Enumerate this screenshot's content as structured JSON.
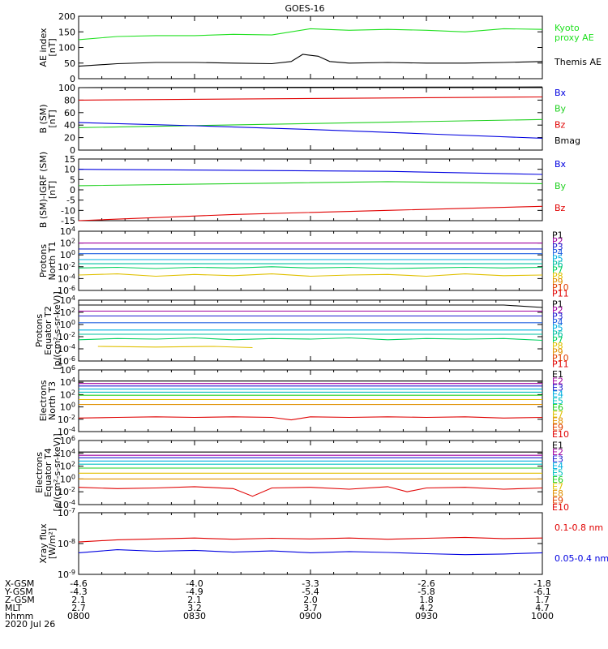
{
  "title": "GOES-16",
  "colors": {
    "black": "#000000",
    "red": "#e00000",
    "green": "#20d020",
    "blue": "#0000e0",
    "ae_green": "#20e020",
    "p": [
      "#000000",
      "#a000a0",
      "#2020d0",
      "#2060e0",
      "#00b0e0",
      "#00c0a0",
      "#00d060",
      "#e0c000",
      "#e09000",
      "#e04000",
      "#e00000"
    ],
    "e": [
      "#000000",
      "#a000a0",
      "#2020d0",
      "#00b0e0",
      "#00c0c0",
      "#20d020",
      "#e0c000",
      "#e09000",
      "#e04000",
      "#e00000"
    ]
  },
  "chart_data": [
    {
      "name": "ae",
      "type": "line",
      "ylabel": "AE index\n[nT]",
      "ylim": [
        0,
        200
      ],
      "log": false,
      "ticks": [
        "0",
        "50",
        "100",
        "150",
        "200"
      ],
      "tickvals": [
        0,
        50,
        100,
        150,
        200
      ],
      "legend": [
        "Kyoto\nproxy AE",
        "Themis AE"
      ],
      "series": [
        {
          "name": "Kyoto proxy AE",
          "color_key": "ae_green",
          "x": [
            0,
            10,
            20,
            30,
            40,
            50,
            60,
            70,
            80,
            90,
            100,
            110,
            120
          ],
          "y": [
            125,
            135,
            138,
            138,
            142,
            140,
            160,
            155,
            158,
            155,
            150,
            160,
            158
          ]
        },
        {
          "name": "Themis AE",
          "color_key": "black",
          "x": [
            0,
            10,
            20,
            30,
            40,
            50,
            55,
            58,
            62,
            65,
            70,
            80,
            90,
            100,
            110,
            120
          ],
          "y": [
            40,
            48,
            52,
            52,
            50,
            48,
            55,
            78,
            72,
            55,
            50,
            52,
            50,
            50,
            52,
            55
          ]
        }
      ]
    },
    {
      "name": "b_sm",
      "type": "line",
      "ylabel": "B (SM)\n[nT]",
      "ylim": [
        0,
        100
      ],
      "log": false,
      "ticks": [
        "0",
        "20",
        "40",
        "60",
        "80",
        "100"
      ],
      "tickvals": [
        0,
        20,
        40,
        60,
        80,
        100
      ],
      "legend": [
        "Bx",
        "By",
        "Bz",
        "Bmag"
      ],
      "series": [
        {
          "name": "Bmag",
          "color_key": "black",
          "x": [
            0,
            120
          ],
          "y": [
            100,
            101
          ]
        },
        {
          "name": "Bz",
          "color_key": "red",
          "x": [
            0,
            120
          ],
          "y": [
            80,
            85
          ]
        },
        {
          "name": "By",
          "color_key": "green",
          "x": [
            0,
            120
          ],
          "y": [
            36,
            49
          ]
        },
        {
          "name": "Bx",
          "color_key": "blue",
          "x": [
            0,
            30,
            60,
            90,
            120
          ],
          "y": [
            44,
            39,
            33,
            26,
            19
          ]
        }
      ]
    },
    {
      "name": "b_igrf",
      "type": "line",
      "ylabel": "B (SM)-IGRF (SM)\n[nT]",
      "ylim": [
        -15,
        15
      ],
      "log": false,
      "ticks": [
        "-15",
        "-10",
        "-5",
        "0",
        "5",
        "10",
        "15"
      ],
      "tickvals": [
        -15,
        -10,
        -5,
        0,
        5,
        10,
        15
      ],
      "legend": [
        "Bx",
        "By",
        "Bz"
      ],
      "series": [
        {
          "name": "Bx",
          "color_key": "blue",
          "x": [
            0,
            40,
            80,
            120
          ],
          "y": [
            10,
            9.5,
            9,
            7.5
          ]
        },
        {
          "name": "By",
          "color_key": "green",
          "x": [
            0,
            40,
            80,
            120
          ],
          "y": [
            2,
            3,
            4,
            3
          ]
        },
        {
          "name": "Bz",
          "color_key": "red",
          "x": [
            0,
            40,
            80,
            120
          ],
          "y": [
            -15,
            -12,
            -10,
            -8
          ]
        }
      ]
    },
    {
      "name": "p_t1",
      "type": "line",
      "ylabel": "Protons\nNorth T1",
      "ylim": [
        -6,
        4
      ],
      "log": true,
      "ticks": [
        "10-6",
        "10-4",
        "10-2",
        "100",
        "102",
        "104"
      ],
      "tickvals": [
        -6,
        -4,
        -2,
        0,
        2,
        4
      ],
      "legend": [
        "P1",
        "P2",
        "P3",
        "P4",
        "P5",
        "P6",
        "P7",
        "P8",
        "P9",
        "P10",
        "P11"
      ],
      "series": [
        {
          "name": "P2",
          "color_key": "p1",
          "x": [
            0,
            120
          ],
          "y": [
            2.0,
            2.0
          ]
        },
        {
          "name": "P3",
          "color_key": "p2",
          "x": [
            0,
            120
          ],
          "y": [
            1.0,
            1.0
          ]
        },
        {
          "name": "P4",
          "color_key": "p3",
          "x": [
            0,
            120
          ],
          "y": [
            0.2,
            0.2
          ]
        },
        {
          "name": "P5",
          "color_key": "p4",
          "x": [
            0,
            120
          ],
          "y": [
            -0.8,
            -0.8
          ]
        },
        {
          "name": "P6",
          "color_key": "p5",
          "x": [
            0,
            120
          ],
          "y": [
            -1.5,
            -1.5
          ]
        },
        {
          "name": "P7",
          "color_key": "p6",
          "x": [
            0,
            10,
            20,
            30,
            40,
            50,
            60,
            70,
            80,
            90,
            100,
            110,
            120
          ],
          "y": [
            -2.2,
            -2.1,
            -2.3,
            -2.1,
            -2.2,
            -2.0,
            -2.2,
            -2.1,
            -2.3,
            -2.2,
            -2.1,
            -2.2,
            -2.1
          ]
        },
        {
          "name": "P8",
          "color_key": "p7",
          "x": [
            0,
            10,
            20,
            30,
            40,
            50,
            60,
            70,
            80,
            90,
            100,
            110,
            120
          ],
          "y": [
            -3.4,
            -3.2,
            -3.6,
            -3.3,
            -3.5,
            -3.2,
            -3.6,
            -3.4,
            -3.3,
            -3.6,
            -3.2,
            -3.5,
            -3.4
          ]
        }
      ]
    },
    {
      "name": "p_t2",
      "type": "line",
      "ylabel": "Protons\nEquator T2\n[p/(cm²-s-sr-keV)]",
      "ylim": [
        -6,
        4
      ],
      "log": true,
      "ticks": [
        "10-6",
        "10-4",
        "10-2",
        "100",
        "102",
        "104"
      ],
      "tickvals": [
        -6,
        -4,
        -2,
        0,
        2,
        4
      ],
      "legend": [
        "P1",
        "P2",
        "P3",
        "P4",
        "P5",
        "P6",
        "P7",
        "P8",
        "P9",
        "P10",
        "P11"
      ],
      "series": [
        {
          "name": "P1",
          "color_key": "p0",
          "x": [
            0,
            110,
            120
          ],
          "y": [
            3.2,
            3.2,
            2.8
          ]
        },
        {
          "name": "P2",
          "color_key": "p1",
          "x": [
            0,
            120
          ],
          "y": [
            2.2,
            2.2
          ]
        },
        {
          "name": "P3",
          "color_key": "p2",
          "x": [
            0,
            120
          ],
          "y": [
            1.4,
            1.4
          ]
        },
        {
          "name": "P4",
          "color_key": "p3",
          "x": [
            0,
            120
          ],
          "y": [
            0.3,
            0.3
          ]
        },
        {
          "name": "P5",
          "color_key": "p4",
          "x": [
            0,
            120
          ],
          "y": [
            -0.9,
            -0.9
          ]
        },
        {
          "name": "P6",
          "color_key": "p5",
          "x": [
            0,
            120
          ],
          "y": [
            -1.6,
            -1.6
          ]
        },
        {
          "name": "P7",
          "color_key": "p6",
          "x": [
            0,
            10,
            20,
            30,
            40,
            50,
            60,
            70,
            80,
            90,
            100,
            110,
            120
          ],
          "y": [
            -2.5,
            -2.3,
            -2.4,
            -2.2,
            -2.5,
            -2.3,
            -2.4,
            -2.2,
            -2.5,
            -2.3,
            -2.4,
            -2.3,
            -2.6
          ]
        },
        {
          "name": "P8",
          "color_key": "p7",
          "x": [
            5,
            20,
            35,
            45
          ],
          "y": [
            -3.6,
            -3.7,
            -3.6,
            -3.8
          ]
        }
      ]
    },
    {
      "name": "e_t3",
      "type": "line",
      "ylabel": "Electrons\nNorth T3",
      "ylim": [
        -4,
        6
      ],
      "log": true,
      "ticks": [
        "10-4",
        "10-2",
        "100",
        "102",
        "104",
        "106"
      ],
      "tickvals": [
        -4,
        -2,
        0,
        2,
        4,
        6
      ],
      "legend": [
        "E1",
        "E2",
        "E3",
        "E4",
        "E5",
        "E6",
        "E7",
        "E8",
        "E9",
        "E10"
      ],
      "series": [
        {
          "name": "E1",
          "color_key": "e0",
          "x": [
            0,
            120
          ],
          "y": [
            4.2,
            4.2
          ]
        },
        {
          "name": "E2",
          "color_key": "e1",
          "x": [
            0,
            120
          ],
          "y": [
            3.8,
            3.8
          ]
        },
        {
          "name": "E3",
          "color_key": "e2",
          "x": [
            0,
            120
          ],
          "y": [
            3.4,
            3.4
          ]
        },
        {
          "name": "E4",
          "color_key": "e3",
          "x": [
            0,
            120
          ],
          "y": [
            2.9,
            2.9
          ]
        },
        {
          "name": "E5",
          "color_key": "e4",
          "x": [
            0,
            120
          ],
          "y": [
            2.4,
            2.4
          ]
        },
        {
          "name": "E6",
          "color_key": "e5",
          "x": [
            0,
            120
          ],
          "y": [
            1.9,
            1.9
          ]
        },
        {
          "name": "E7",
          "color_key": "e6",
          "x": [
            0,
            120
          ],
          "y": [
            1.2,
            1.2
          ]
        },
        {
          "name": "E8",
          "color_key": "e7",
          "x": [
            0,
            120
          ],
          "y": [
            0.4,
            0.4
          ]
        },
        {
          "name": "E10",
          "color_key": "e9",
          "x": [
            0,
            10,
            20,
            30,
            40,
            50,
            55,
            60,
            70,
            80,
            90,
            100,
            110,
            120
          ],
          "y": [
            -1.8,
            -1.7,
            -1.6,
            -1.7,
            -1.6,
            -1.7,
            -2.1,
            -1.6,
            -1.7,
            -1.6,
            -1.7,
            -1.6,
            -1.8,
            -1.7
          ]
        }
      ]
    },
    {
      "name": "e_t4",
      "type": "line",
      "ylabel": "Electrons\nEquator T4\n[e/(cm²-s-sr-keV)]",
      "ylim": [
        -4,
        6
      ],
      "log": true,
      "ticks": [
        "10-4",
        "10-2",
        "100",
        "102",
        "104",
        "106"
      ],
      "tickvals": [
        -4,
        -2,
        0,
        2,
        4,
        6
      ],
      "legend": [
        "E1",
        "E2",
        "E3",
        "E4",
        "E5",
        "E6",
        "E7",
        "E8",
        "E9",
        "E10"
      ],
      "series": [
        {
          "name": "E1",
          "color_key": "e0",
          "x": [
            0,
            120
          ],
          "y": [
            4.2,
            4.2
          ]
        },
        {
          "name": "E2",
          "color_key": "e1",
          "x": [
            0,
            120
          ],
          "y": [
            3.7,
            3.7
          ]
        },
        {
          "name": "E3",
          "color_key": "e2",
          "x": [
            0,
            120
          ],
          "y": [
            3.3,
            3.3
          ]
        },
        {
          "name": "E4",
          "color_key": "e3",
          "x": [
            0,
            120
          ],
          "y": [
            2.8,
            2.8
          ]
        },
        {
          "name": "E5",
          "color_key": "e4",
          "x": [
            0,
            120
          ],
          "y": [
            2.3,
            2.3
          ]
        },
        {
          "name": "E6",
          "color_key": "e5",
          "x": [
            0,
            120
          ],
          "y": [
            1.7,
            1.7
          ]
        },
        {
          "name": "E7",
          "color_key": "e6",
          "x": [
            0,
            120
          ],
          "y": [
            0.9,
            0.9
          ]
        },
        {
          "name": "E8",
          "color_key": "e7",
          "x": [
            0,
            120
          ],
          "y": [
            0.0,
            0.0
          ]
        },
        {
          "name": "E10",
          "color_key": "e9",
          "x": [
            0,
            10,
            20,
            30,
            40,
            45,
            50,
            60,
            70,
            80,
            85,
            90,
            100,
            110,
            120
          ],
          "y": [
            -1.3,
            -1.5,
            -1.4,
            -1.2,
            -1.5,
            -2.7,
            -1.4,
            -1.3,
            -1.6,
            -1.2,
            -2.0,
            -1.4,
            -1.3,
            -1.6,
            -1.4
          ]
        }
      ]
    },
    {
      "name": "xray",
      "type": "line",
      "ylabel": "Xray flux\n[W/m²]",
      "ylim": [
        -9,
        -7
      ],
      "log": true,
      "ticks": [
        "10-9",
        "10-8",
        "10-7"
      ],
      "tickvals": [
        -9,
        -8,
        -7
      ],
      "legend": [
        "0.1-0.8 nm",
        "0.05-0.4 nm"
      ],
      "series": [
        {
          "name": "0.1-0.8 nm",
          "color_key": "red",
          "x": [
            0,
            10,
            20,
            30,
            40,
            50,
            60,
            70,
            80,
            90,
            100,
            110,
            120
          ],
          "y": [
            -7.95,
            -7.88,
            -7.85,
            -7.82,
            -7.86,
            -7.83,
            -7.85,
            -7.82,
            -7.86,
            -7.83,
            -7.8,
            -7.84,
            -7.82
          ]
        },
        {
          "name": "0.05-0.4 nm",
          "color_key": "blue",
          "x": [
            0,
            10,
            20,
            30,
            40,
            50,
            60,
            70,
            80,
            90,
            100,
            110,
            120
          ],
          "y": [
            -8.3,
            -8.2,
            -8.25,
            -8.22,
            -8.28,
            -8.24,
            -8.3,
            -8.26,
            -8.29,
            -8.33,
            -8.36,
            -8.34,
            -8.3
          ]
        }
      ]
    }
  ],
  "xaxis": {
    "row_labels": [
      "X-GSM",
      "Y-GSM",
      "Z-GSM",
      "MLT",
      "hhmm",
      "2020 Jul 26"
    ],
    "ticks": [
      {
        "x": 0,
        "vals": [
          "-4.6",
          "-4.3",
          "2.1",
          "2.7",
          "0800"
        ]
      },
      {
        "x": 30,
        "vals": [
          "-4.0",
          "-4.9",
          "2.1",
          "3.2",
          "0830"
        ]
      },
      {
        "x": 60,
        "vals": [
          "-3.3",
          "-5.4",
          "2.0",
          "3.7",
          "0900"
        ]
      },
      {
        "x": 90,
        "vals": [
          "-2.6",
          "-5.8",
          "1.8",
          "4.2",
          "0930"
        ]
      },
      {
        "x": 120,
        "vals": [
          "-1.8",
          "-6.1",
          "1.7",
          "4.7",
          "1000"
        ]
      }
    ],
    "xlim": [
      0,
      120
    ]
  }
}
